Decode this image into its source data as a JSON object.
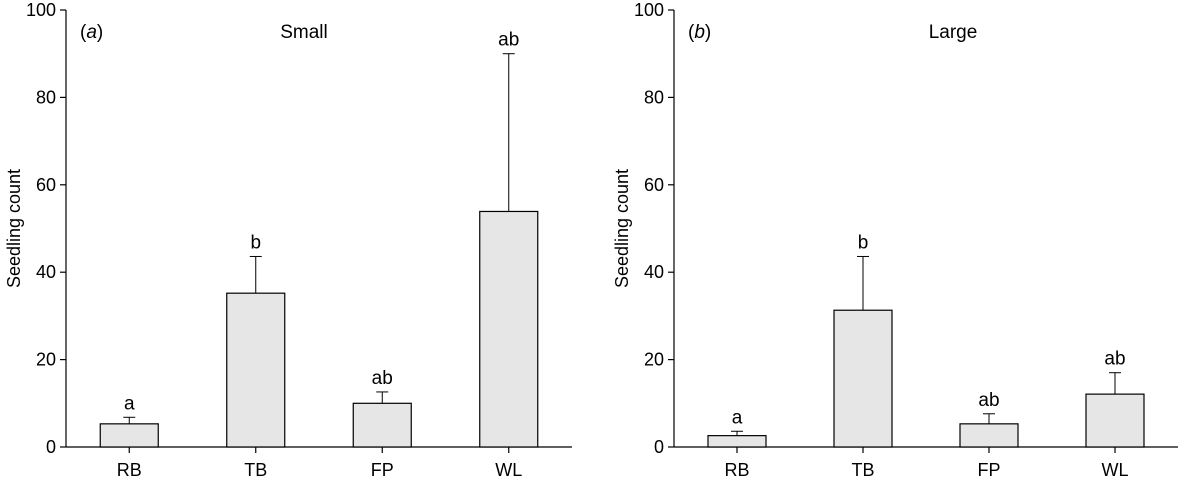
{
  "chart_data": [
    {
      "type": "bar",
      "panel": "(a)",
      "panel_letter": "a",
      "title": "Small",
      "ylabel": "Seedling count",
      "xlabel": "",
      "ylim": [
        0,
        100
      ],
      "yticks": [
        0,
        20,
        40,
        60,
        80,
        100
      ],
      "categories": [
        "RB",
        "TB",
        "FP",
        "WL"
      ],
      "values": [
        5.3,
        35.2,
        10.0,
        53.9
      ],
      "error_upper": [
        6.8,
        43.6,
        12.6,
        90.0
      ],
      "significance": [
        "a",
        "b",
        "ab",
        "ab"
      ],
      "bar_color": "#e6e6e6"
    },
    {
      "type": "bar",
      "panel": "(b)",
      "panel_letter": "b",
      "title": "Large",
      "ylabel": "Seedling count",
      "xlabel": "",
      "ylim": [
        0,
        100
      ],
      "yticks": [
        0,
        20,
        40,
        60,
        80,
        100
      ],
      "categories": [
        "RB",
        "TB",
        "FP",
        "WL"
      ],
      "values": [
        2.6,
        31.3,
        5.3,
        12.1
      ],
      "error_upper": [
        3.6,
        43.6,
        7.6,
        17.0
      ],
      "significance": [
        "a",
        "b",
        "ab",
        "ab"
      ],
      "bar_color": "#e6e6e6"
    }
  ]
}
